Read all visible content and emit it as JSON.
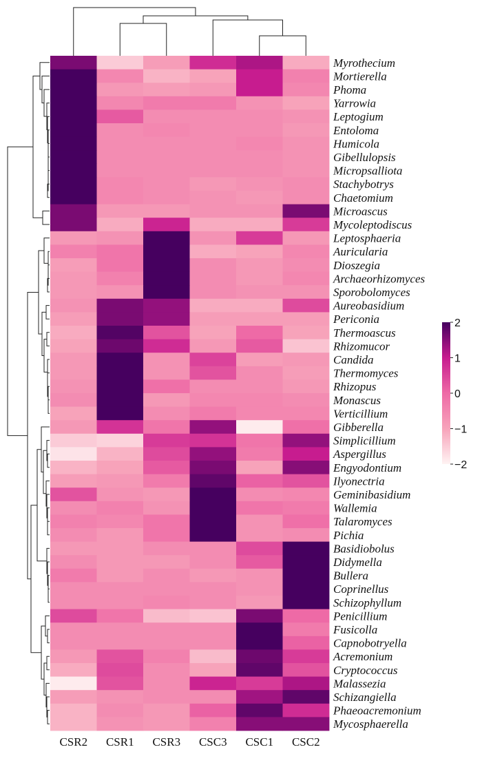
{
  "chart_data": {
    "type": "heatmap",
    "columns": [
      "CSR2",
      "CSR1",
      "CSR3",
      "CSC3",
      "CSC1",
      "CSC2"
    ],
    "rows": [
      "Myrothecium",
      "Mortierella",
      "Phoma",
      "Yarrowia",
      "Leptogium",
      "Entoloma",
      "Humicola",
      "Gibellulopsis",
      "Micropsalliota",
      "Stachybotrys",
      "Chaetomium",
      "Microascus",
      "Mycoleptodiscus",
      "Leptosphaeria",
      "Auricularia",
      "Dioszegia",
      "Archaeorhizomyces",
      "Sporobolomyces",
      "Aureobasidium",
      "Periconia",
      "Thermoascus",
      "Rhizomucor",
      "Candida",
      "Thermomyces",
      "Rhizopus",
      "Monascus",
      "Verticillium",
      "Gibberella",
      "Simplicillium",
      "Aspergillus",
      "Engyodontium",
      "Ilyonectria",
      "Geminibasidium",
      "Wallemia",
      "Talaromyces",
      "Pichia",
      "Basidiobolus",
      "Didymella",
      "Bullera",
      "Coprinellus",
      "Schizophyllum",
      "Penicillium",
      "Fusicolla",
      "Capnobotryella",
      "Acremonium",
      "Cryptococcus",
      "Malassezia",
      "Schizangiella",
      "Phaeoacremonium",
      "Mycosphaerella"
    ],
    "values": [
      [
        1.6,
        -1.5,
        -0.9,
        0.8,
        1.2,
        -1.1
      ],
      [
        2.0,
        -0.5,
        -1.2,
        -1.0,
        1.0,
        -0.4
      ],
      [
        2.0,
        -0.8,
        -0.9,
        -0.8,
        1.0,
        -0.5
      ],
      [
        2.0,
        -0.5,
        -0.3,
        -0.3,
        -0.7,
        -1.0
      ],
      [
        2.0,
        0.2,
        -0.6,
        -0.6,
        -0.6,
        -0.7
      ],
      [
        2.0,
        -0.6,
        -0.5,
        -0.6,
        -0.6,
        -0.8
      ],
      [
        2.0,
        -0.6,
        -0.6,
        -0.6,
        -0.5,
        -0.7
      ],
      [
        2.0,
        -0.6,
        -0.6,
        -0.6,
        -0.6,
        -0.7
      ],
      [
        2.0,
        -0.6,
        -0.6,
        -0.6,
        -0.6,
        -0.7
      ],
      [
        2.0,
        -0.5,
        -0.6,
        -0.8,
        -0.7,
        -0.6
      ],
      [
        2.0,
        -0.5,
        -0.6,
        -0.7,
        -0.8,
        -0.6
      ],
      [
        1.6,
        -0.8,
        -0.8,
        -0.7,
        -0.7,
        1.6
      ],
      [
        1.6,
        -1.1,
        0.9,
        -1.1,
        -1.1,
        0.6
      ],
      [
        -0.8,
        -0.7,
        2.0,
        -0.7,
        0.6,
        -0.8
      ],
      [
        -0.4,
        -0.2,
        2.0,
        -1.1,
        -1.0,
        -0.5
      ],
      [
        -0.9,
        -0.2,
        2.0,
        -0.6,
        -0.8,
        -0.6
      ],
      [
        -0.8,
        -0.4,
        2.0,
        -0.6,
        -0.8,
        -0.5
      ],
      [
        -0.8,
        -0.7,
        2.0,
        -0.6,
        -0.7,
        -0.7
      ],
      [
        -0.7,
        1.6,
        1.4,
        -1.1,
        -1.1,
        0.4
      ],
      [
        -0.9,
        1.6,
        1.4,
        -0.9,
        -0.9,
        -0.9
      ],
      [
        -1.1,
        1.9,
        0.3,
        -1.0,
        0.0,
        -1.0
      ],
      [
        -1.0,
        1.7,
        0.8,
        -0.8,
        0.2,
        -1.4
      ],
      [
        -0.8,
        2.0,
        -0.7,
        0.5,
        -0.9,
        -0.8
      ],
      [
        -0.8,
        2.0,
        -0.7,
        0.3,
        -0.6,
        -0.9
      ],
      [
        -0.7,
        2.0,
        -0.1,
        -0.6,
        -0.6,
        -0.8
      ],
      [
        -0.6,
        2.0,
        -0.8,
        -0.5,
        -0.5,
        -0.6
      ],
      [
        -1.0,
        2.0,
        -0.6,
        -0.3,
        -0.5,
        -0.5
      ],
      [
        -0.8,
        0.7,
        -0.2,
        1.4,
        -1.9,
        -0.1
      ],
      [
        -1.5,
        -1.6,
        0.6,
        0.7,
        -0.2,
        1.4
      ],
      [
        -1.8,
        -1.2,
        0.4,
        1.4,
        -0.3,
        1.0
      ],
      [
        -1.2,
        -1.0,
        0.2,
        1.6,
        -1.0,
        1.5
      ],
      [
        -0.9,
        -0.8,
        -0.3,
        1.8,
        0.1,
        0.3
      ],
      [
        0.3,
        -0.7,
        -0.8,
        2.0,
        -0.6,
        -0.5
      ],
      [
        -0.6,
        -0.4,
        -0.7,
        2.0,
        -0.2,
        -0.3
      ],
      [
        -0.4,
        -0.5,
        -0.2,
        2.0,
        -0.7,
        -0.1
      ],
      [
        -0.6,
        -0.8,
        -0.2,
        2.0,
        -0.7,
        -0.6
      ],
      [
        -0.8,
        -0.8,
        -0.6,
        -0.6,
        0.4,
        2.0
      ],
      [
        -0.6,
        -0.8,
        -0.8,
        -0.6,
        0.2,
        2.0
      ],
      [
        -0.3,
        -0.8,
        -0.6,
        -0.8,
        -0.7,
        2.0
      ],
      [
        -0.6,
        -0.6,
        -0.6,
        -0.6,
        -0.7,
        2.0
      ],
      [
        -0.6,
        -0.6,
        -0.5,
        -0.6,
        -0.8,
        2.0
      ],
      [
        0.4,
        -0.2,
        -1.3,
        -1.4,
        1.6,
        0.0
      ],
      [
        -0.6,
        -0.6,
        -0.6,
        -0.6,
        2.0,
        -0.3
      ],
      [
        -0.6,
        -0.6,
        -0.6,
        -0.6,
        2.0,
        0.1
      ],
      [
        -0.8,
        0.3,
        -0.4,
        -1.3,
        1.7,
        0.6
      ],
      [
        -1.1,
        0.4,
        -0.6,
        -1.0,
        1.8,
        0.3
      ],
      [
        -1.9,
        0.3,
        -0.6,
        0.9,
        0.6,
        1.2
      ],
      [
        -0.9,
        -0.7,
        -0.6,
        -0.6,
        1.3,
        1.8
      ],
      [
        -1.2,
        -0.6,
        -0.8,
        0.1,
        1.8,
        0.8
      ],
      [
        -1.2,
        -0.7,
        -0.8,
        -0.4,
        1.5,
        1.5
      ]
    ],
    "colorbar": {
      "ticks": [
        "2",
        "1",
        "0",
        "−1",
        "−2"
      ],
      "min": -2,
      "max": 2,
      "colors": [
        "#fff3f3",
        "#f7a3ba",
        "#ee6aa6",
        "#c71c8f",
        "#46005f"
      ]
    }
  }
}
